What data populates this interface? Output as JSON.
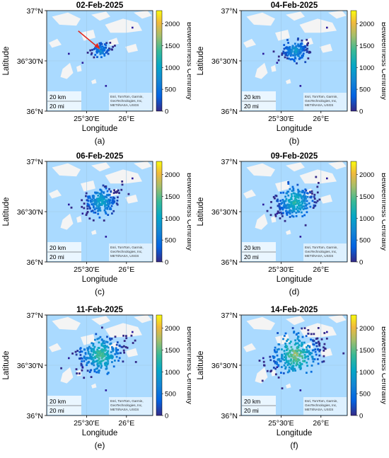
{
  "figure": {
    "xlabel": "Longitude",
    "ylabel": "Latitude",
    "colorbar_label": "Betweenness Centrality",
    "colorbar_ticks": [
      "0",
      "500",
      "1000",
      "1500",
      "2000"
    ],
    "x_ticks": [
      "25°30'E",
      "26°E"
    ],
    "y_ticks": [
      "37°N",
      "36°30'N",
      "36°N"
    ],
    "scalebar": [
      "20 km",
      "20 mi"
    ],
    "attribution_short": "Esri, TomTom, Garmin, GeoTechnologies, Inc, METI/NASA, USGS",
    "colors": {
      "sea": "#aadaff",
      "land": "#f4f4f4",
      "point": "#2a1a9c"
    }
  },
  "panels": [
    {
      "title": "02-Feb-2025",
      "label": "(a)",
      "arrow": true
    },
    {
      "title": "04-Feb-2025",
      "label": "(b)",
      "arrow": false
    },
    {
      "title": "06-Feb-2025",
      "label": "(c)",
      "arrow": false
    },
    {
      "title": "09-Feb-2025",
      "label": "(d)",
      "arrow": false
    },
    {
      "title": "11-Feb-2025",
      "label": "(e)",
      "arrow": false
    },
    {
      "title": "14-Feb-2025",
      "label": "(f)",
      "arrow": false
    }
  ],
  "chart_data": {
    "type": "scatter",
    "x_range": [
      25.0,
      26.33
    ],
    "y_range": [
      36.0,
      37.0
    ],
    "color_range": [
      0,
      2300
    ],
    "color_ticks": [
      0,
      500,
      1000,
      1500,
      2000
    ],
    "cluster_center": [
      25.68,
      36.6
    ],
    "cluster_points_per_panel": [
      70,
      160,
      230,
      260,
      290,
      300
    ]
  }
}
